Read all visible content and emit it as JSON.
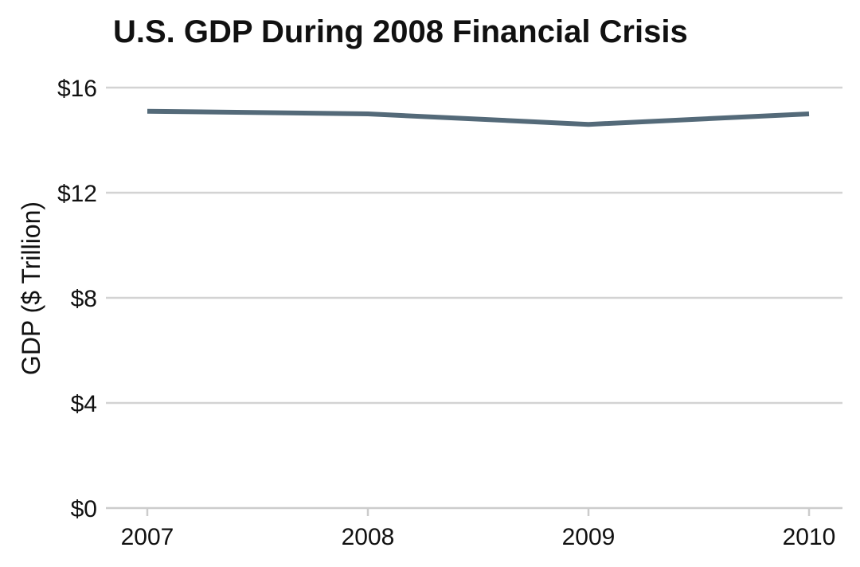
{
  "chart_data": {
    "type": "line",
    "title": "U.S. GDP During 2008 Financial Crisis",
    "xlabel": "",
    "ylabel": "GDP ($ Trillion)",
    "categories": [
      "2007",
      "2008",
      "2009",
      "2010"
    ],
    "series": [
      {
        "values": [
          15.1,
          15.0,
          14.6,
          15.0
        ],
        "color": "#546a79"
      }
    ],
    "ylim": [
      0,
      16
    ],
    "yticks": [
      0,
      4,
      8,
      12,
      16
    ],
    "ytick_labels": [
      "$0",
      "$4",
      "$8",
      "$12",
      "$16"
    ],
    "grid": true,
    "legend": "none"
  },
  "colors": {
    "line": "#546a79",
    "grid": "#d3d3d3",
    "axis": "#cccccc",
    "text": "#111111"
  }
}
